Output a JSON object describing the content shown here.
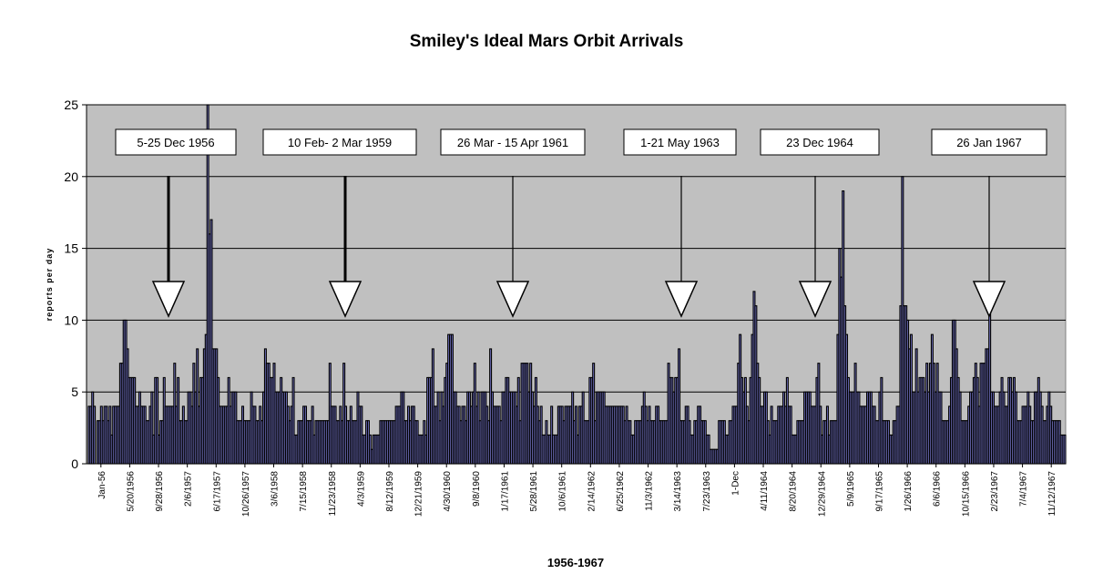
{
  "chart_data": {
    "type": "bar",
    "title": "Smiley's Ideal Mars Orbit Arrivals",
    "xlabel": "1956-1967",
    "ylabel": "reports per day",
    "ylim": [
      0,
      25
    ],
    "yticks": [
      0,
      5,
      10,
      15,
      20,
      25
    ],
    "grid": true,
    "legend": "none",
    "colors": {
      "plot_bg": "#c0c0c0",
      "bar_fill": "#7878cc",
      "bar_stroke": "#000000",
      "box_fill": "#ffffff"
    },
    "xticks": [
      "Jan-56",
      "5/20/1956",
      "9/28/1956",
      "2/6/1957",
      "6/17/1957",
      "10/26/1957",
      "3/6/1958",
      "7/15/1958",
      "11/23/1958",
      "4/3/1959",
      "8/12/1959",
      "12/21/1959",
      "4/30/1960",
      "9/8/1960",
      "1/17/1961",
      "5/28/1961",
      "10/6/1961",
      "2/14/1962",
      "6/25/1962",
      "11/3/1962",
      "3/14/1963",
      "7/23/1963",
      "1-Dec",
      "4/11/1964",
      "8/20/1964",
      "12/29/1964",
      "5/9/1965",
      "9/17/1965",
      "1/26/1966",
      "6/6/1966",
      "10/15/1966",
      "2/23/1967",
      "7/4/1967",
      "11/12/1967"
    ],
    "values": [
      0,
      4,
      4,
      5,
      4,
      0,
      3,
      3,
      4,
      3,
      4,
      4,
      3,
      4,
      2,
      4,
      4,
      4,
      4,
      7,
      7,
      10,
      10,
      8,
      6,
      6,
      6,
      6,
      4,
      4,
      5,
      4,
      4,
      4,
      3,
      3,
      4,
      5,
      2,
      6,
      6,
      2,
      3,
      3,
      6,
      4,
      4,
      4,
      4,
      4,
      7,
      4,
      6,
      3,
      3,
      4,
      3,
      3,
      5,
      5,
      4,
      7,
      5,
      8,
      4,
      6,
      6,
      8,
      9,
      25,
      16,
      17,
      8,
      8,
      8,
      6,
      4,
      4,
      4,
      4,
      4,
      6,
      4,
      5,
      5,
      5,
      3,
      3,
      3,
      4,
      3,
      3,
      3,
      3,
      5,
      4,
      4,
      3,
      3,
      4,
      3,
      5,
      8,
      7,
      7,
      6,
      6,
      7,
      5,
      5,
      5,
      6,
      5,
      5,
      5,
      4,
      3,
      4,
      6,
      2,
      2,
      3,
      3,
      3,
      4,
      4,
      3,
      3,
      3,
      4,
      2,
      3,
      3,
      3,
      3,
      3,
      3,
      3,
      3,
      7,
      4,
      4,
      4,
      3,
      3,
      4,
      3,
      7,
      4,
      3,
      3,
      4,
      3,
      3,
      3,
      5,
      4,
      4,
      2,
      2,
      3,
      3,
      2,
      1,
      2,
      2,
      2,
      2,
      3,
      3,
      3,
      3,
      3,
      3,
      3,
      3,
      3,
      4,
      4,
      4,
      5,
      5,
      3,
      3,
      4,
      3,
      4,
      4,
      3,
      3,
      2,
      2,
      2,
      3,
      2,
      6,
      6,
      6,
      8,
      4,
      4,
      5,
      3,
      5,
      4,
      6,
      7,
      9,
      9,
      9,
      5,
      5,
      4,
      4,
      3,
      4,
      4,
      3,
      5,
      5,
      4,
      5,
      7,
      4,
      5,
      3,
      5,
      5,
      5,
      4,
      3,
      8,
      5,
      4,
      4,
      4,
      4,
      3,
      5,
      5,
      6,
      6,
      5,
      5,
      5,
      5,
      4,
      6,
      3,
      7,
      7,
      7,
      7,
      5,
      7,
      5,
      4,
      6,
      4,
      3,
      4,
      2,
      2,
      3,
      2,
      2,
      4,
      2,
      2,
      2,
      4,
      4,
      4,
      3,
      4,
      4,
      4,
      4,
      5,
      3,
      4,
      2,
      4,
      4,
      5,
      3,
      3,
      3,
      6,
      6,
      7,
      3,
      5,
      5,
      5,
      5,
      5,
      4,
      4,
      4,
      4,
      4,
      4,
      4,
      4,
      4,
      4,
      4,
      3,
      4,
      3,
      3,
      2,
      2,
      3,
      3,
      3,
      3,
      4,
      5,
      4,
      3,
      4,
      3,
      3,
      3,
      4,
      4,
      3,
      3,
      3,
      3,
      3,
      7,
      6,
      6,
      5,
      6,
      6,
      8,
      3,
      3,
      3,
      4,
      4,
      3,
      2,
      2,
      3,
      3,
      4,
      4,
      3,
      3,
      3,
      2,
      2,
      1,
      1,
      1,
      1,
      1,
      3,
      3,
      3,
      3,
      2,
      2,
      3,
      3,
      4,
      4,
      4,
      7,
      9,
      6,
      5,
      6,
      4,
      3,
      6,
      9,
      12,
      11,
      7,
      6,
      4,
      4,
      5,
      5,
      3,
      2,
      4,
      3,
      3,
      3,
      4,
      4,
      4,
      5,
      4,
      6,
      4,
      4,
      2,
      2,
      2,
      3,
      3,
      3,
      3,
      5,
      5,
      5,
      5,
      4,
      4,
      4,
      6,
      7,
      4,
      2,
      3,
      3,
      4,
      2,
      3,
      3,
      3,
      3,
      9,
      15,
      13,
      19,
      11,
      9,
      6,
      5,
      5,
      5,
      7,
      5,
      5,
      4,
      4,
      4,
      4,
      5,
      5,
      5,
      4,
      4,
      3,
      3,
      5,
      6,
      3,
      3,
      3,
      3,
      2,
      2,
      3,
      3,
      4,
      4,
      11,
      20,
      11,
      11,
      10,
      8,
      9,
      5,
      5,
      8,
      5,
      6,
      6,
      6,
      5,
      7,
      5,
      7,
      9,
      7,
      5,
      7,
      5,
      5,
      3,
      3,
      3,
      3,
      4,
      6,
      10,
      10,
      8,
      6,
      5,
      3,
      3,
      3,
      3,
      4,
      5,
      5,
      6,
      7,
      6,
      4,
      7,
      7,
      7,
      8,
      8,
      11,
      5,
      5,
      4,
      4,
      4,
      5,
      6,
      5,
      4,
      4,
      6,
      6,
      5,
      6,
      5,
      3,
      3,
      3,
      4,
      4,
      4,
      5,
      4,
      3,
      3,
      5,
      5,
      6,
      5,
      4,
      3,
      3,
      4,
      5,
      4,
      3,
      3,
      3,
      3,
      3,
      2,
      2,
      2
    ]
  },
  "annotations": [
    {
      "label": "5-25 Dec 1956"
    },
    {
      "label": "10 Feb- 2 Mar 1959"
    },
    {
      "label": "26 Mar - 15 Apr 1961"
    },
    {
      "label": "1-21 May 1963"
    },
    {
      "label": "23 Dec 1964"
    },
    {
      "label": "26 Jan 1967"
    }
  ]
}
